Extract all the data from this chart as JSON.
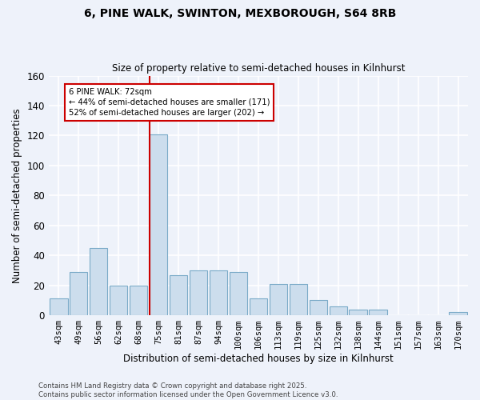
{
  "title1": "6, PINE WALK, SWINTON, MEXBOROUGH, S64 8RB",
  "title2": "Size of property relative to semi-detached houses in Kilnhurst",
  "xlabel": "Distribution of semi-detached houses by size in Kilnhurst",
  "ylabel": "Number of semi-detached properties",
  "categories": [
    "43sqm",
    "49sqm",
    "56sqm",
    "62sqm",
    "68sqm",
    "75sqm",
    "81sqm",
    "87sqm",
    "94sqm",
    "100sqm",
    "106sqm",
    "113sqm",
    "119sqm",
    "125sqm",
    "132sqm",
    "138sqm",
    "144sqm",
    "151sqm",
    "157sqm",
    "163sqm",
    "170sqm"
  ],
  "values": [
    11,
    29,
    45,
    20,
    20,
    121,
    27,
    30,
    30,
    29,
    11,
    21,
    21,
    10,
    6,
    4,
    4,
    0,
    0,
    0,
    2
  ],
  "bar_color": "#ccdded",
  "bar_edge_color": "#7aaac8",
  "highlight_index": 5,
  "vline_color": "#cc0000",
  "annotation_text": "6 PINE WALK: 72sqm\n← 44% of semi-detached houses are smaller (171)\n52% of semi-detached houses are larger (202) →",
  "annotation_box_color": "#ffffff",
  "annotation_box_edge": "#cc0000",
  "ylim": [
    0,
    160
  ],
  "yticks": [
    0,
    20,
    40,
    60,
    80,
    100,
    120,
    140,
    160
  ],
  "background_color": "#eef2fa",
  "grid_color": "#ffffff",
  "footer1": "Contains HM Land Registry data © Crown copyright and database right 2025.",
  "footer2": "Contains public sector information licensed under the Open Government Licence v3.0."
}
